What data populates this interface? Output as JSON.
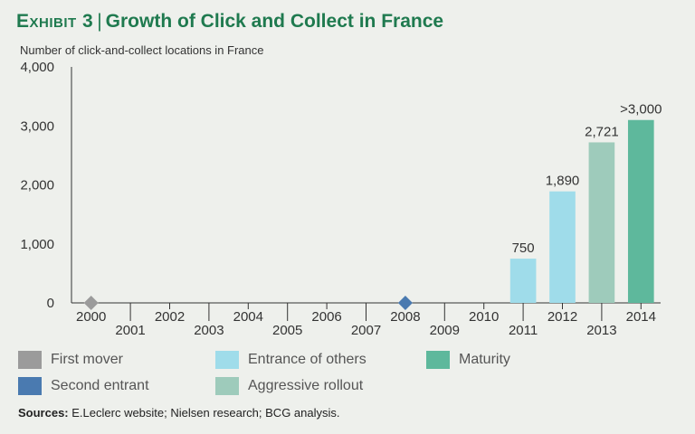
{
  "header": {
    "exhibit": "Exhibit 3",
    "separator": "|",
    "title": "Growth of Click and Collect in France"
  },
  "colors": {
    "first_mover": "#9b9b9b",
    "second_entrant": "#4a7ab0",
    "entrance_of_others": "#9fdcea",
    "aggressive_rollout": "#9ecbbb",
    "maturity": "#5eb89c",
    "axis": "#333333"
  },
  "chart_data": {
    "type": "bar",
    "ylabel": "Number of click-and-collect locations in France",
    "ylim": [
      0,
      4000
    ],
    "yticks": [
      0,
      1000,
      2000,
      3000,
      4000
    ],
    "ytick_labels": [
      "0",
      "1,000",
      "2,000",
      "3,000",
      "4,000"
    ],
    "categories": [
      "2000",
      "2001",
      "2002",
      "2003",
      "2004",
      "2005",
      "2006",
      "2007",
      "2008",
      "2009",
      "2010",
      "2011",
      "2012",
      "2013",
      "2014"
    ],
    "bars": [
      {
        "year": "2011",
        "value": 750,
        "label": "750",
        "phase": "entrance_of_others"
      },
      {
        "year": "2012",
        "value": 1890,
        "label": "1,890",
        "phase": "entrance_of_others"
      },
      {
        "year": "2013",
        "value": 2721,
        "label": "2,721",
        "phase": "aggressive_rollout"
      },
      {
        "year": "2014",
        "value": 3100,
        "label": ">3,000",
        "phase": "maturity"
      }
    ],
    "markers": [
      {
        "year": "2000",
        "value": 0,
        "phase": "first_mover"
      },
      {
        "year": "2008",
        "value": 0,
        "phase": "second_entrant"
      }
    ]
  },
  "legend": {
    "items": [
      {
        "key": "first_mover",
        "label": "First mover"
      },
      {
        "key": "entrance_of_others",
        "label": "Entrance of others"
      },
      {
        "key": "maturity",
        "label": "Maturity"
      },
      {
        "key": "second_entrant",
        "label": "Second entrant"
      },
      {
        "key": "aggressive_rollout",
        "label": "Aggressive rollout"
      }
    ]
  },
  "sources": {
    "label": "Sources:",
    "text": "E.Leclerc website; Nielsen research; BCG analysis."
  }
}
